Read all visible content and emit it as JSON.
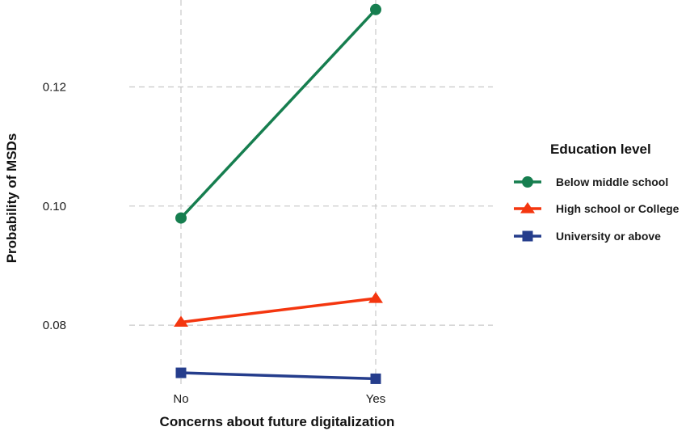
{
  "chart_data": {
    "type": "line",
    "title": "",
    "xlabel": "Concerns about future digitalization",
    "ylabel": "Probability of MSDs",
    "categories": [
      "No",
      "Yes"
    ],
    "yticks": [
      "0.08",
      "0.10",
      "0.12"
    ],
    "ylim": [
      0.0697,
      0.1346
    ],
    "grid": true,
    "legend": {
      "title": "Education level",
      "position": "right"
    },
    "series": [
      {
        "name": "Below middle school",
        "values": [
          0.098,
          0.133
        ],
        "color": "#167e4f",
        "marker": "circle"
      },
      {
        "name": "High school or College",
        "values": [
          0.0805,
          0.0845
        ],
        "color": "#f4360f",
        "marker": "triangle"
      },
      {
        "name": "University or above",
        "values": [
          0.072,
          0.071
        ],
        "color": "#253d8c",
        "marker": "square"
      }
    ]
  }
}
